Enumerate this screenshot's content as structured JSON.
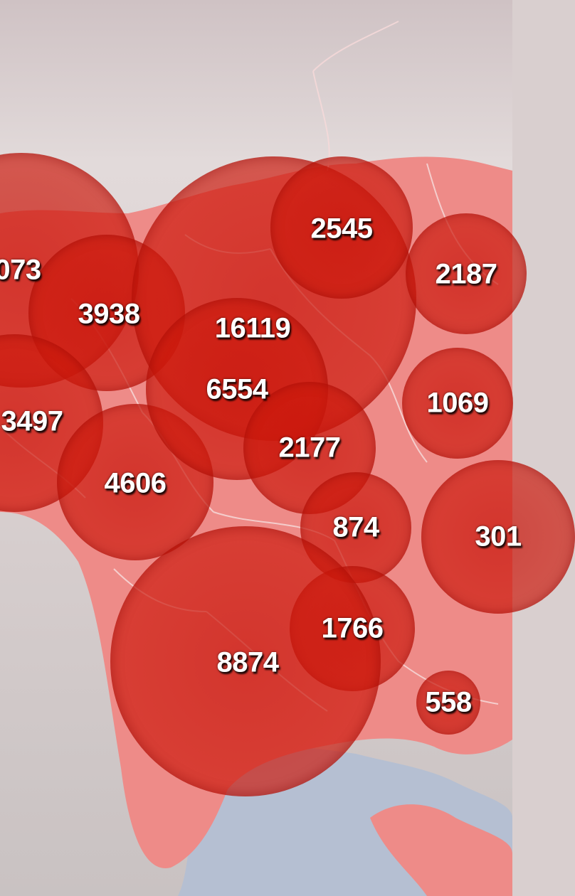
{
  "colors": {
    "territory": "#ee8b88",
    "bubble": "#c8140a",
    "sea": "#b5bfd2",
    "border": "#f6d9d9",
    "background": "#d9cfcf"
  },
  "bubbles": [
    {
      "id": "b-073",
      "label": "073"
    },
    {
      "id": "b-3938",
      "label": "3938"
    },
    {
      "id": "b-3497",
      "label": "3497"
    },
    {
      "id": "b-4606",
      "label": "4606"
    },
    {
      "id": "b-16119",
      "label": "16119"
    },
    {
      "id": "b-6554",
      "label": "6554"
    },
    {
      "id": "b-2545",
      "label": "2545"
    },
    {
      "id": "b-2187",
      "label": "2187"
    },
    {
      "id": "b-1069",
      "label": "1069"
    },
    {
      "id": "b-2177",
      "label": "2177"
    },
    {
      "id": "b-874",
      "label": "874"
    },
    {
      "id": "b-301",
      "label": "301"
    },
    {
      "id": "b-1766",
      "label": "1766"
    },
    {
      "id": "b-8874",
      "label": "8874"
    },
    {
      "id": "b-558",
      "label": "558"
    }
  ]
}
